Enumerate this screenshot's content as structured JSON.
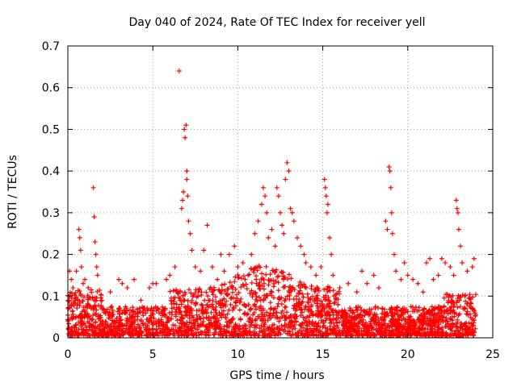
{
  "chart_data": {
    "type": "scatter",
    "title": "Day 040 of 2024, Rate Of TEC Index for receiver yell",
    "xlabel": "GPS time / hours",
    "ylabel": "ROTI / TECUs",
    "xlim": [
      0,
      25
    ],
    "ylim": [
      0,
      0.7
    ],
    "xticks": [
      0,
      5,
      10,
      15,
      20,
      25
    ],
    "yticks": [
      0,
      0.1,
      0.2,
      0.3,
      0.4,
      0.5,
      0.6,
      0.7
    ],
    "xtick_labels": [
      "0",
      "5",
      "10",
      "15",
      "20",
      "25"
    ],
    "ytick_labels": [
      "0",
      "0.1",
      "0.2",
      "0.3",
      "0.4",
      "0.5",
      "0.6",
      "0.7"
    ],
    "grid": true,
    "marker": "+",
    "color": "#ff0000",
    "series": [
      {
        "name": "ROTI",
        "points": [
          [
            0.1,
            0.16
          ],
          [
            0.2,
            0.14
          ],
          [
            0.3,
            0.12
          ],
          [
            0.5,
            0.16
          ],
          [
            0.65,
            0.26
          ],
          [
            0.7,
            0.24
          ],
          [
            0.75,
            0.21
          ],
          [
            0.8,
            0.17
          ],
          [
            0.9,
            0.13
          ],
          [
            1.0,
            0.14
          ],
          [
            1.2,
            0.12
          ],
          [
            1.5,
            0.36
          ],
          [
            1.55,
            0.29
          ],
          [
            1.6,
            0.23
          ],
          [
            1.65,
            0.2
          ],
          [
            1.7,
            0.17
          ],
          [
            1.75,
            0.15
          ],
          [
            2.0,
            0.09
          ],
          [
            2.5,
            0.11
          ],
          [
            3.0,
            0.14
          ],
          [
            3.2,
            0.13
          ],
          [
            3.5,
            0.12
          ],
          [
            3.9,
            0.14
          ],
          [
            4.3,
            0.09
          ],
          [
            4.8,
            0.12
          ],
          [
            5.0,
            0.13
          ],
          [
            5.2,
            0.13
          ],
          [
            5.8,
            0.14
          ],
          [
            6.0,
            0.15
          ],
          [
            6.3,
            0.17
          ],
          [
            6.55,
            0.64
          ],
          [
            6.7,
            0.31
          ],
          [
            6.75,
            0.33
          ],
          [
            6.8,
            0.35
          ],
          [
            6.85,
            0.5
          ],
          [
            6.9,
            0.48
          ],
          [
            6.95,
            0.51
          ],
          [
            7.0,
            0.38
          ],
          [
            7.0,
            0.4
          ],
          [
            7.05,
            0.34
          ],
          [
            7.1,
            0.28
          ],
          [
            7.2,
            0.25
          ],
          [
            7.3,
            0.21
          ],
          [
            7.5,
            0.17
          ],
          [
            7.8,
            0.16
          ],
          [
            8.0,
            0.21
          ],
          [
            8.2,
            0.27
          ],
          [
            8.5,
            0.17
          ],
          [
            8.8,
            0.14
          ],
          [
            9.0,
            0.2
          ],
          [
            9.2,
            0.16
          ],
          [
            9.5,
            0.2
          ],
          [
            9.8,
            0.22
          ],
          [
            10.0,
            0.17
          ],
          [
            10.3,
            0.18
          ],
          [
            10.6,
            0.15
          ],
          [
            10.8,
            0.2
          ],
          [
            11.0,
            0.25
          ],
          [
            11.2,
            0.28
          ],
          [
            11.4,
            0.32
          ],
          [
            11.5,
            0.36
          ],
          [
            11.6,
            0.34
          ],
          [
            11.7,
            0.3
          ],
          [
            11.8,
            0.24
          ],
          [
            12.0,
            0.26
          ],
          [
            12.2,
            0.22
          ],
          [
            12.3,
            0.36
          ],
          [
            12.4,
            0.34
          ],
          [
            12.5,
            0.3
          ],
          [
            12.6,
            0.27
          ],
          [
            12.7,
            0.25
          ],
          [
            12.8,
            0.38
          ],
          [
            12.9,
            0.42
          ],
          [
            13.0,
            0.4
          ],
          [
            13.1,
            0.31
          ],
          [
            13.2,
            0.3
          ],
          [
            13.3,
            0.28
          ],
          [
            13.5,
            0.24
          ],
          [
            13.7,
            0.22
          ],
          [
            13.9,
            0.2
          ],
          [
            14.0,
            0.18
          ],
          [
            14.3,
            0.17
          ],
          [
            14.6,
            0.15
          ],
          [
            14.9,
            0.17
          ],
          [
            15.1,
            0.38
          ],
          [
            15.15,
            0.36
          ],
          [
            15.2,
            0.34
          ],
          [
            15.25,
            0.3
          ],
          [
            15.3,
            0.32
          ],
          [
            15.4,
            0.24
          ],
          [
            15.5,
            0.2
          ],
          [
            15.6,
            0.15
          ],
          [
            16.0,
            0.12
          ],
          [
            16.5,
            0.13
          ],
          [
            17.0,
            0.11
          ],
          [
            17.3,
            0.16
          ],
          [
            17.6,
            0.13
          ],
          [
            18.0,
            0.15
          ],
          [
            18.3,
            0.12
          ],
          [
            18.7,
            0.28
          ],
          [
            18.8,
            0.26
          ],
          [
            18.9,
            0.41
          ],
          [
            18.95,
            0.4
          ],
          [
            19.0,
            0.36
          ],
          [
            19.05,
            0.3
          ],
          [
            19.1,
            0.25
          ],
          [
            19.2,
            0.2
          ],
          [
            19.3,
            0.16
          ],
          [
            19.6,
            0.14
          ],
          [
            19.8,
            0.18
          ],
          [
            20.0,
            0.15
          ],
          [
            20.3,
            0.14
          ],
          [
            20.6,
            0.13
          ],
          [
            20.9,
            0.11
          ],
          [
            21.1,
            0.18
          ],
          [
            21.3,
            0.19
          ],
          [
            21.5,
            0.14
          ],
          [
            21.8,
            0.15
          ],
          [
            22.0,
            0.19
          ],
          [
            22.2,
            0.18
          ],
          [
            22.5,
            0.17
          ],
          [
            22.7,
            0.15
          ],
          [
            22.85,
            0.33
          ],
          [
            22.9,
            0.31
          ],
          [
            22.95,
            0.3
          ],
          [
            23.0,
            0.26
          ],
          [
            23.1,
            0.22
          ],
          [
            23.2,
            0.18
          ],
          [
            23.5,
            0.16
          ],
          [
            23.8,
            0.17
          ],
          [
            23.9,
            0.19
          ]
        ]
      }
    ]
  }
}
